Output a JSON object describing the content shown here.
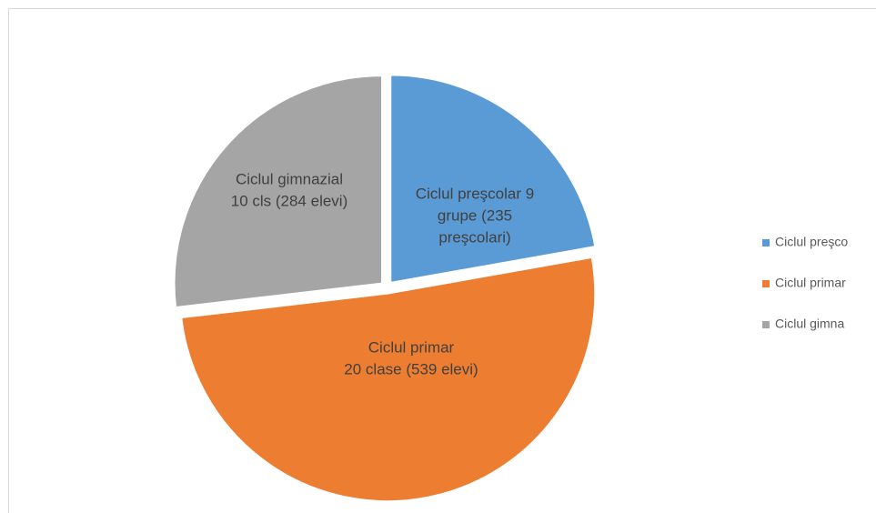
{
  "chart_data": {
    "type": "pie",
    "categories": [
      "Ciclul preşco",
      "Ciclul primar",
      "Ciclul gimna"
    ],
    "values": [
      235,
      539,
      284
    ],
    "value_labels": [
      [
        "Ciclul preşcolar 9",
        "grupe (235",
        "preşcolari)"
      ],
      [
        "Ciclul primar",
        "20 clase (539 elevi)"
      ],
      [
        "Ciclul gimnazial",
        "10 cls (284 elevi)"
      ]
    ],
    "colors": [
      "#5b9bd5",
      "#ed7d31",
      "#a5a5a5"
    ],
    "legend": "right"
  }
}
